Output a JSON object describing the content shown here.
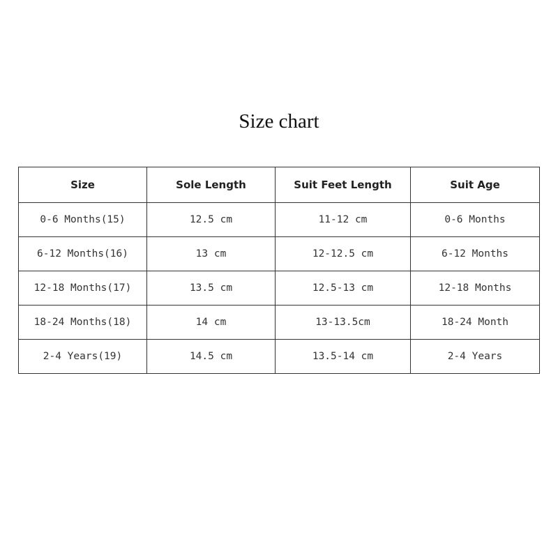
{
  "title": "Size chart",
  "table": {
    "headers": [
      "Size",
      "Sole Length",
      "Suit Feet Length",
      "Suit Age"
    ],
    "rows": [
      [
        "0-6 Months(15)",
        "12.5 cm",
        "11-12 cm",
        "0-6 Months"
      ],
      [
        "6-12 Months(16)",
        "13 cm",
        "12-12.5 cm",
        "6-12 Months"
      ],
      [
        "12-18 Months(17)",
        "13.5 cm",
        "12.5-13 cm",
        "12-18 Months"
      ],
      [
        "18-24 Months(18)",
        "14 cm",
        "13-13.5cm",
        "18-24 Month"
      ],
      [
        "2-4 Years(19)",
        "14.5 cm",
        "13.5-14 cm",
        "2-4 Years"
      ]
    ]
  }
}
